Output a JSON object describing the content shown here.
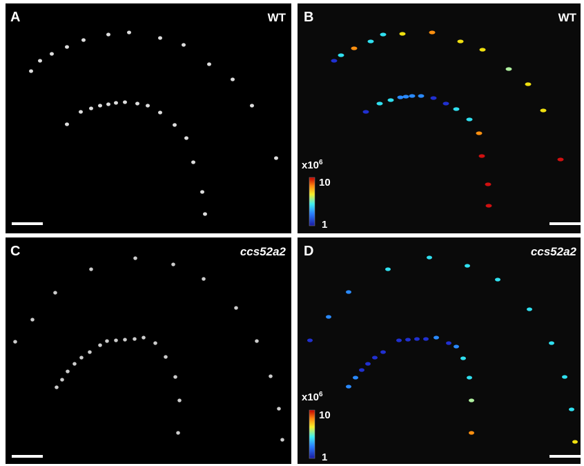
{
  "panels": [
    {
      "label": "A",
      "genotype": "WT"
    },
    {
      "label": "B",
      "genotype": "WT",
      "colorbar": {
        "scale": "x10",
        "exponent": "6",
        "max": 10,
        "min": 1
      }
    },
    {
      "label": "C",
      "genotype": "ccs52a2"
    },
    {
      "label": "D",
      "genotype": "ccs52a2",
      "colorbar": {
        "scale": "x10",
        "exponent": "6",
        "max": 10,
        "min": 1
      }
    }
  ]
}
